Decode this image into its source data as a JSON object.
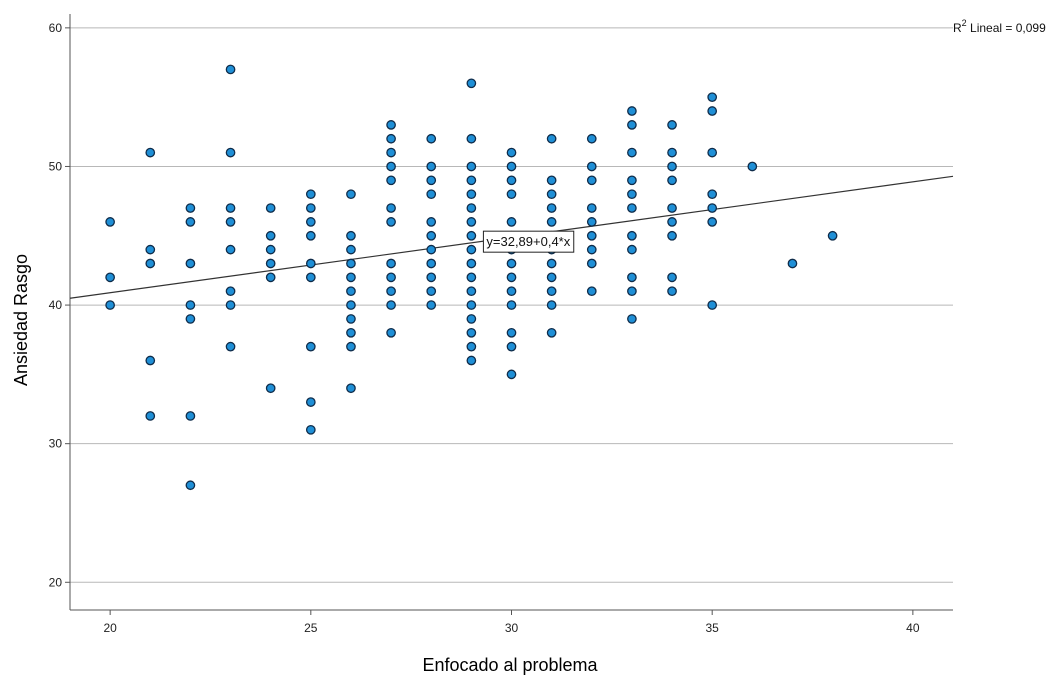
{
  "chart_data": {
    "type": "scatter",
    "xlabel": "Enfocado al problema",
    "ylabel": "Ansiedad Rasgo",
    "xlim": [
      19,
      41
    ],
    "ylim": [
      18,
      61
    ],
    "xticks": [
      "20",
      "25",
      "30",
      "35",
      "40"
    ],
    "yticks": [
      "20",
      "30",
      "40",
      "50",
      "60"
    ],
    "grid": "horizontal",
    "fit_line": {
      "intercept": 32.89,
      "slope": 0.4,
      "equation": "y=32,89+0,4*x"
    },
    "r2_label": {
      "prefix": "R",
      "sup": "2",
      "text": " Lineal = 0,099"
    },
    "marker_color": "#1f8fd6",
    "marker_edge": "#0f2c4a",
    "points": [
      [
        20,
        46
      ],
      [
        20,
        42
      ],
      [
        20,
        40
      ],
      [
        21,
        51
      ],
      [
        21,
        44
      ],
      [
        21,
        43
      ],
      [
        21,
        36
      ],
      [
        21,
        32
      ],
      [
        22,
        47
      ],
      [
        22,
        46
      ],
      [
        22,
        43
      ],
      [
        22,
        40
      ],
      [
        22,
        39
      ],
      [
        22,
        32
      ],
      [
        22,
        27
      ],
      [
        23,
        57
      ],
      [
        23,
        51
      ],
      [
        23,
        47
      ],
      [
        23,
        46
      ],
      [
        23,
        44
      ],
      [
        23,
        41
      ],
      [
        23,
        40
      ],
      [
        23,
        37
      ],
      [
        24,
        47
      ],
      [
        24,
        45
      ],
      [
        24,
        44
      ],
      [
        24,
        43
      ],
      [
        24,
        42
      ],
      [
        24,
        34
      ],
      [
        25,
        48
      ],
      [
        25,
        47
      ],
      [
        25,
        46
      ],
      [
        25,
        45
      ],
      [
        25,
        43
      ],
      [
        25,
        42
      ],
      [
        25,
        37
      ],
      [
        25,
        33
      ],
      [
        25,
        31
      ],
      [
        26,
        48
      ],
      [
        26,
        45
      ],
      [
        26,
        44
      ],
      [
        26,
        43
      ],
      [
        26,
        42
      ],
      [
        26,
        41
      ],
      [
        26,
        40
      ],
      [
        26,
        39
      ],
      [
        26,
        38
      ],
      [
        26,
        37
      ],
      [
        26,
        34
      ],
      [
        27,
        53
      ],
      [
        27,
        52
      ],
      [
        27,
        51
      ],
      [
        27,
        50
      ],
      [
        27,
        49
      ],
      [
        27,
        47
      ],
      [
        27,
        46
      ],
      [
        27,
        43
      ],
      [
        27,
        42
      ],
      [
        27,
        41
      ],
      [
        27,
        40
      ],
      [
        27,
        38
      ],
      [
        28,
        52
      ],
      [
        28,
        50
      ],
      [
        28,
        49
      ],
      [
        28,
        48
      ],
      [
        28,
        46
      ],
      [
        28,
        45
      ],
      [
        28,
        44
      ],
      [
        28,
        43
      ],
      [
        28,
        42
      ],
      [
        28,
        41
      ],
      [
        28,
        40
      ],
      [
        29,
        56
      ],
      [
        29,
        52
      ],
      [
        29,
        50
      ],
      [
        29,
        49
      ],
      [
        29,
        48
      ],
      [
        29,
        47
      ],
      [
        29,
        46
      ],
      [
        29,
        45
      ],
      [
        29,
        44
      ],
      [
        29,
        43
      ],
      [
        29,
        42
      ],
      [
        29,
        41
      ],
      [
        29,
        40
      ],
      [
        29,
        39
      ],
      [
        29,
        38
      ],
      [
        29,
        37
      ],
      [
        29,
        36
      ],
      [
        30,
        51
      ],
      [
        30,
        50
      ],
      [
        30,
        49
      ],
      [
        30,
        48
      ],
      [
        30,
        46
      ],
      [
        30,
        45
      ],
      [
        30,
        44
      ],
      [
        30,
        43
      ],
      [
        30,
        42
      ],
      [
        30,
        41
      ],
      [
        30,
        40
      ],
      [
        30,
        38
      ],
      [
        30,
        37
      ],
      [
        30,
        35
      ],
      [
        31,
        52
      ],
      [
        31,
        49
      ],
      [
        31,
        48
      ],
      [
        31,
        47
      ],
      [
        31,
        46
      ],
      [
        31,
        45
      ],
      [
        31,
        44
      ],
      [
        31,
        43
      ],
      [
        31,
        42
      ],
      [
        31,
        41
      ],
      [
        31,
        40
      ],
      [
        31,
        38
      ],
      [
        32,
        52
      ],
      [
        32,
        50
      ],
      [
        32,
        49
      ],
      [
        32,
        47
      ],
      [
        32,
        46
      ],
      [
        32,
        45
      ],
      [
        32,
        44
      ],
      [
        32,
        43
      ],
      [
        32,
        41
      ],
      [
        33,
        54
      ],
      [
        33,
        53
      ],
      [
        33,
        51
      ],
      [
        33,
        49
      ],
      [
        33,
        48
      ],
      [
        33,
        47
      ],
      [
        33,
        45
      ],
      [
        33,
        44
      ],
      [
        33,
        42
      ],
      [
        33,
        41
      ],
      [
        33,
        39
      ],
      [
        34,
        53
      ],
      [
        34,
        51
      ],
      [
        34,
        50
      ],
      [
        34,
        49
      ],
      [
        34,
        47
      ],
      [
        34,
        46
      ],
      [
        34,
        45
      ],
      [
        34,
        42
      ],
      [
        34,
        41
      ],
      [
        35,
        55
      ],
      [
        35,
        54
      ],
      [
        35,
        51
      ],
      [
        35,
        48
      ],
      [
        35,
        47
      ],
      [
        35,
        46
      ],
      [
        35,
        40
      ],
      [
        36,
        50
      ],
      [
        37,
        43
      ],
      [
        38,
        45
      ]
    ]
  }
}
